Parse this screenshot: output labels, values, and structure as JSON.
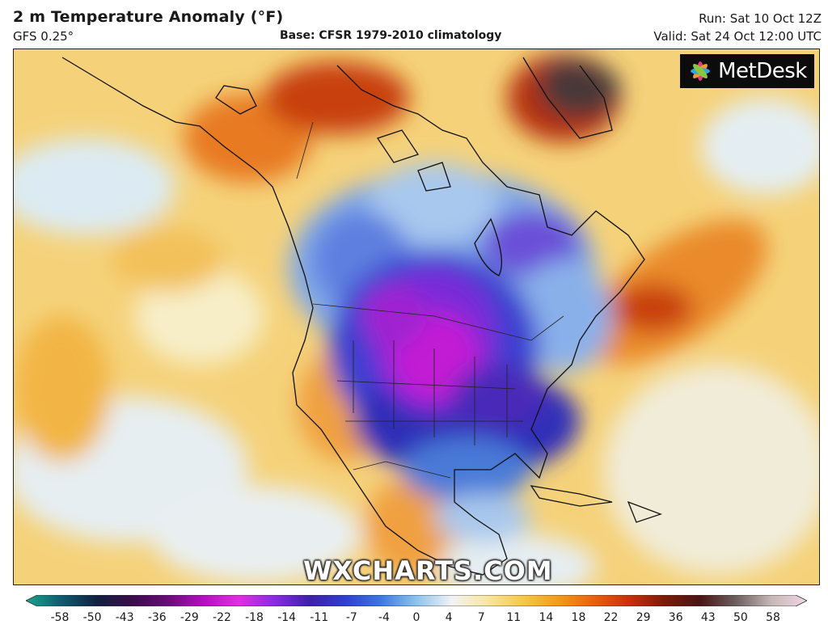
{
  "header": {
    "title": "2 m Temperature Anomaly (°F)",
    "model": "GFS 0.25°",
    "base": "Base: CFSR 1979-2010 climatology",
    "run": "Run: Sat 10 Oct 12Z",
    "valid": "Valid: Sat 24 Oct 12:00 UTC"
  },
  "logo": {
    "text": "MetDesk",
    "icon": "metdesk-flower-icon"
  },
  "watermark": "WXCHARTS.COM",
  "legend": {
    "ticks": [
      "-58",
      "-50",
      "-43",
      "-36",
      "-29",
      "-22",
      "-18",
      "-14",
      "-11",
      "-7",
      "-4",
      "0",
      "4",
      "7",
      "11",
      "14",
      "18",
      "22",
      "29",
      "36",
      "43",
      "50",
      "58"
    ],
    "colors": [
      "#17a68c",
      "#0f5a70",
      "#102040",
      "#3a0c4a",
      "#6a0a7a",
      "#b30fbf",
      "#e02fe0",
      "#8a2be2",
      "#3d1fa8",
      "#2f3fcf",
      "#3c78e0",
      "#8cc3ee",
      "#f3f3f3",
      "#f8e6a0",
      "#f5c84a",
      "#f29b1a",
      "#e86010",
      "#c8300a",
      "#7a1a0a",
      "#4a1414",
      "#6d5f5f",
      "#c7b8b8",
      "#f0d6e4"
    ]
  },
  "map": {
    "region": "North America",
    "field": "2 m temperature anomaly"
  }
}
